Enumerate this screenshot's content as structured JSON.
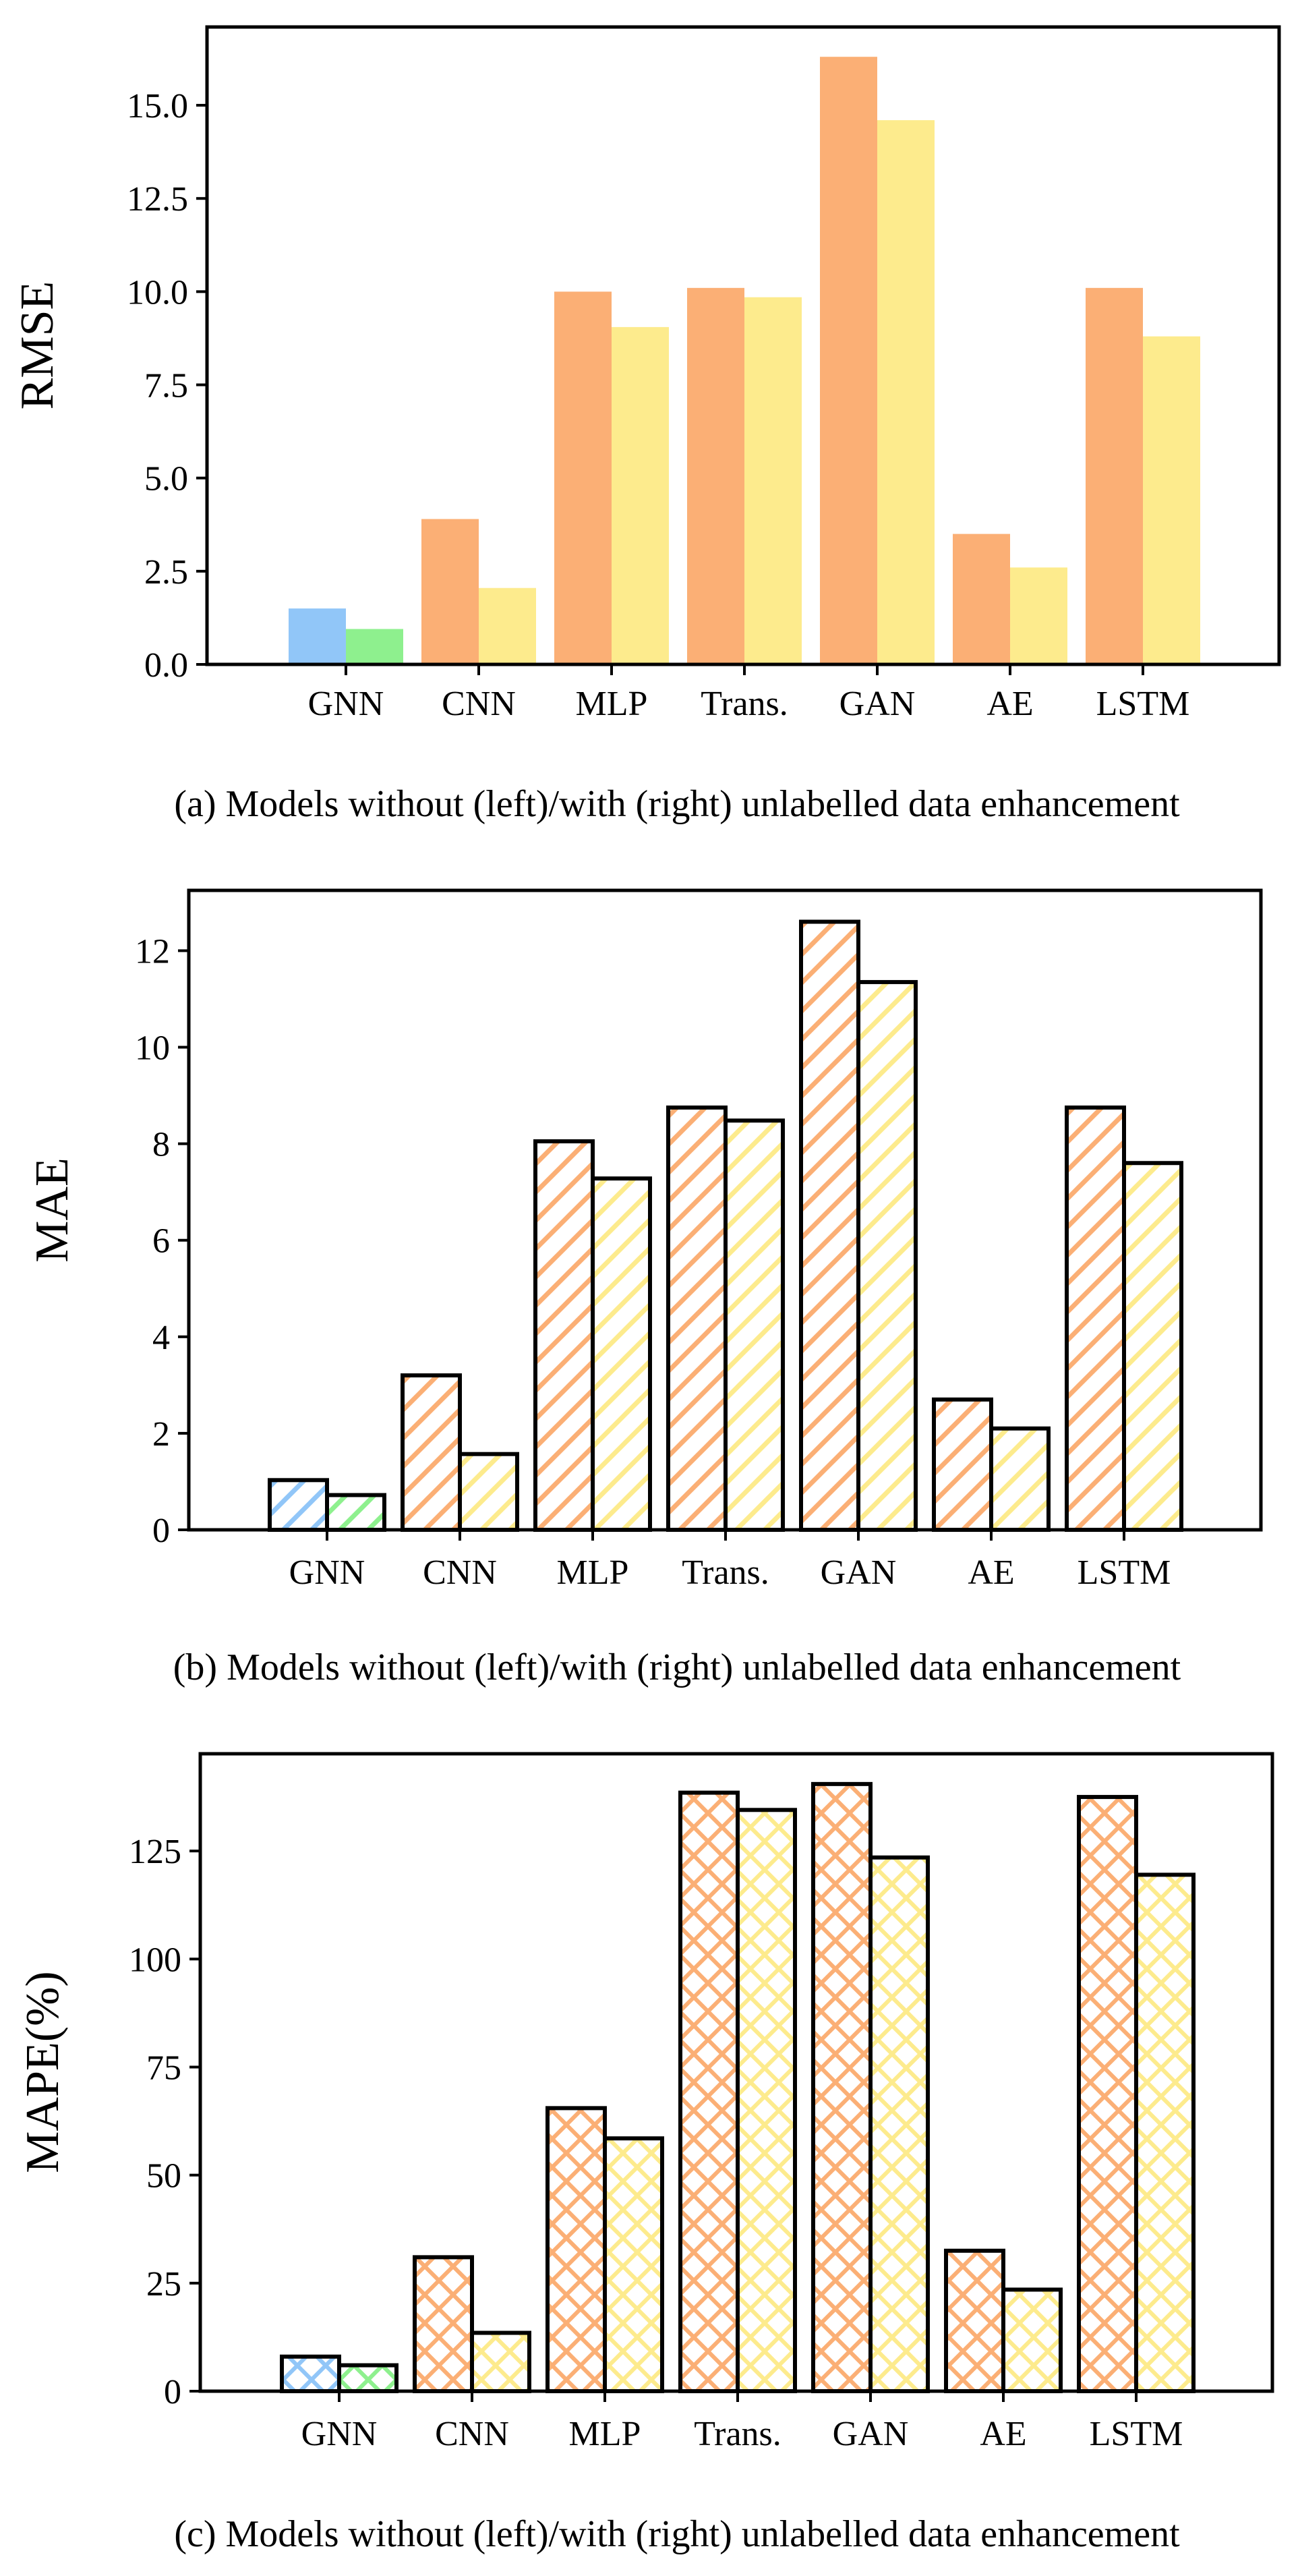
{
  "colors": {
    "gnn_without": "#91C6F8",
    "gnn_with": "#8EF08E",
    "without": "#FBAF75",
    "with": "#FDEB8D",
    "outline": "#000000"
  },
  "chart_data": [
    {
      "type": "bar",
      "title": "",
      "caption": "(a) Models without (left)/with (right) unlabelled data enhancement",
      "xlabel": "",
      "ylabel": "RMSE",
      "categories": [
        "GNN",
        "CNN",
        "MLP",
        "Trans.",
        "GAN",
        "AE",
        "LSTM"
      ],
      "series": [
        {
          "name": "without unlabelled data enhancement",
          "values": [
            1.5,
            3.9,
            10.0,
            10.1,
            16.3,
            3.5,
            10.1
          ]
        },
        {
          "name": "with unlabelled data enhancement",
          "values": [
            0.95,
            2.05,
            9.05,
            9.85,
            14.6,
            2.6,
            8.8
          ]
        }
      ],
      "ylim": [
        0,
        17.1
      ],
      "yticks": [
        0,
        2.5,
        5,
        7.5,
        10,
        12.5,
        15
      ],
      "ytick_labels": [
        "0.0",
        "2.5",
        "5.0",
        "7.5",
        "10.0",
        "12.5",
        "15.0"
      ],
      "style": "solid",
      "grid": false
    },
    {
      "type": "bar",
      "title": "",
      "caption": "(b) Models without (left)/with (right) unlabelled data enhancement",
      "xlabel": "",
      "ylabel": "MAE",
      "categories": [
        "GNN",
        "CNN",
        "MLP",
        "Trans.",
        "GAN",
        "AE",
        "LSTM"
      ],
      "series": [
        {
          "name": "without unlabelled data enhancement",
          "values": [
            1.03,
            3.2,
            8.05,
            8.75,
            12.6,
            2.7,
            8.75
          ]
        },
        {
          "name": "with unlabelled data enhancement",
          "values": [
            0.72,
            1.57,
            7.28,
            8.48,
            11.35,
            2.1,
            7.6
          ]
        }
      ],
      "ylim": [
        0,
        13.25
      ],
      "yticks": [
        0,
        2,
        4,
        6,
        8,
        10,
        12
      ],
      "ytick_labels": [
        "0",
        "2",
        "4",
        "6",
        "8",
        "10",
        "12"
      ],
      "style": "hatch-diagonal",
      "grid": false
    },
    {
      "type": "bar",
      "title": "",
      "caption": "(c) Models without (left)/with (right) unlabelled data enhancement",
      "xlabel": "",
      "ylabel": "MAPE(%)",
      "categories": [
        "GNN",
        "CNN",
        "MLP",
        "Trans.",
        "GAN",
        "AE",
        "LSTM"
      ],
      "series": [
        {
          "name": "without unlabelled data enhancement",
          "values": [
            8,
            31,
            65.5,
            138.5,
            140.5,
            32.5,
            137.5
          ]
        },
        {
          "name": "with unlabelled data enhancement",
          "values": [
            6,
            13.5,
            58.5,
            134.5,
            123.5,
            23.5,
            119.5
          ]
        }
      ],
      "ylim": [
        0,
        147.5
      ],
      "yticks": [
        0,
        25,
        50,
        75,
        100,
        125
      ],
      "ytick_labels": [
        "0",
        "25",
        "50",
        "75",
        "100",
        "125"
      ],
      "style": "hatch-cross",
      "grid": false
    }
  ]
}
